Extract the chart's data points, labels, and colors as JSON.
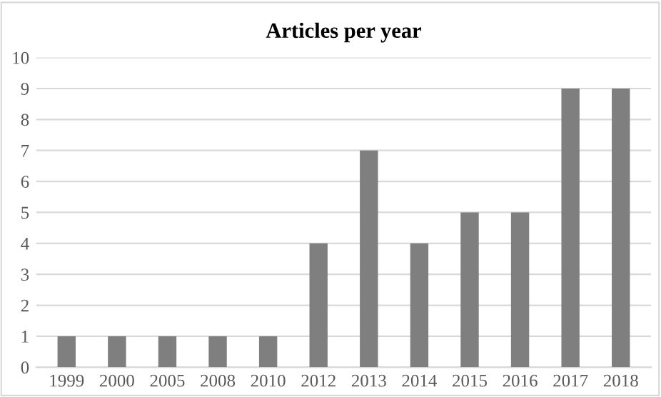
{
  "chart_data": {
    "type": "bar",
    "title": "Articles per year",
    "categories": [
      "1999",
      "2000",
      "2005",
      "2008",
      "2010",
      "2012",
      "2013",
      "2014",
      "2015",
      "2016",
      "2017",
      "2018"
    ],
    "values": [
      1,
      1,
      1,
      1,
      1,
      4,
      7,
      4,
      5,
      5,
      9,
      9
    ],
    "color": "#7f7f7f",
    "ylim": [
      0,
      10
    ],
    "yticks": [
      0,
      1,
      2,
      3,
      4,
      5,
      6,
      7,
      8,
      9,
      10
    ],
    "grid": "y"
  }
}
